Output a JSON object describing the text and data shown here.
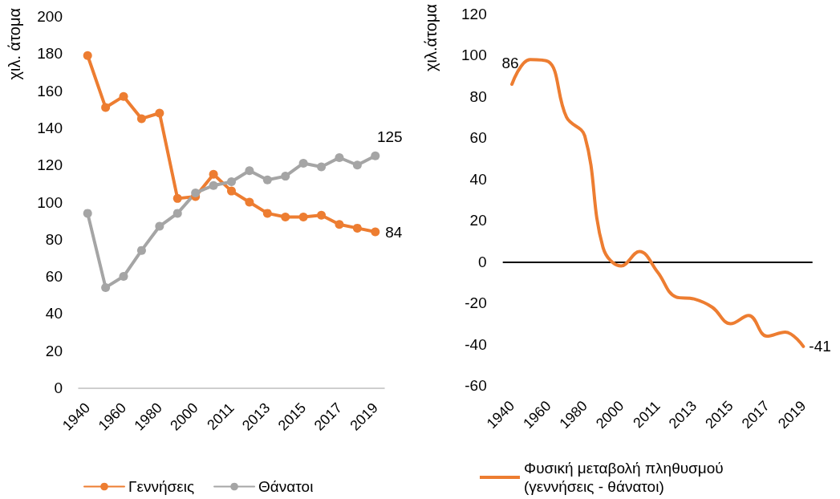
{
  "chart_data": [
    {
      "type": "line",
      "ylabel": "χιλ. άτομα",
      "categories": [
        "1940",
        null,
        "1960",
        null,
        "1980",
        null,
        "2000",
        null,
        "2011",
        null,
        "2013",
        null,
        "2015",
        null,
        "2017",
        null,
        "2019"
      ],
      "series": [
        {
          "name": "Γεννήσεις",
          "color": "#ed7d31",
          "values": [
            179,
            151,
            157,
            145,
            148,
            102,
            103,
            115,
            106,
            100,
            94,
            92,
            92,
            93,
            88,
            86,
            84
          ],
          "value_labels": [
            null,
            null,
            null,
            null,
            null,
            null,
            null,
            null,
            null,
            null,
            null,
            null,
            null,
            null,
            null,
            null,
            "84"
          ]
        },
        {
          "name": "Θάνατοι",
          "color": "#a5a5a5",
          "values": [
            94,
            54,
            60,
            74,
            87,
            94,
            105,
            109,
            111,
            117,
            112,
            114,
            121,
            119,
            124,
            120,
            125
          ],
          "value_labels": [
            null,
            null,
            null,
            null,
            null,
            null,
            null,
            null,
            null,
            null,
            null,
            null,
            null,
            null,
            null,
            null,
            "125"
          ]
        }
      ],
      "ylim": [
        0,
        200
      ],
      "yticks": [
        0,
        20,
        40,
        60,
        80,
        100,
        120,
        140,
        160,
        180,
        200
      ],
      "grid": false,
      "legend": "bottom",
      "marker": "circle"
    },
    {
      "type": "line",
      "ylabel": "χιλ.άτομα",
      "categories": [
        "1940",
        null,
        "1960",
        null,
        "1980",
        null,
        "2000",
        null,
        "2011",
        null,
        "2013",
        null,
        "2015",
        null,
        "2017",
        null,
        "2019"
      ],
      "series": [
        {
          "name": "Φυσική μεταβολή πληθυσμού (γεννήσεις - θάνατοι)",
          "color": "#ed7d31",
          "values": [
            86,
            98,
            97,
            70,
            61,
            7,
            -2,
            5,
            -5,
            -17,
            -18,
            -22,
            -30,
            -26,
            -36,
            -34,
            -41
          ],
          "value_labels": [
            "86",
            null,
            null,
            null,
            null,
            null,
            null,
            null,
            null,
            null,
            null,
            null,
            null,
            null,
            null,
            null,
            "-41"
          ]
        }
      ],
      "ylim": [
        -60,
        120
      ],
      "yticks": [
        -60,
        -40,
        -20,
        0,
        20,
        40,
        60,
        80,
        100,
        120
      ],
      "grid": false,
      "legend": "bottom",
      "marker": "none",
      "ref_lines": [
        {
          "axis": "y",
          "value": 0,
          "color": "#000000"
        }
      ]
    }
  ]
}
